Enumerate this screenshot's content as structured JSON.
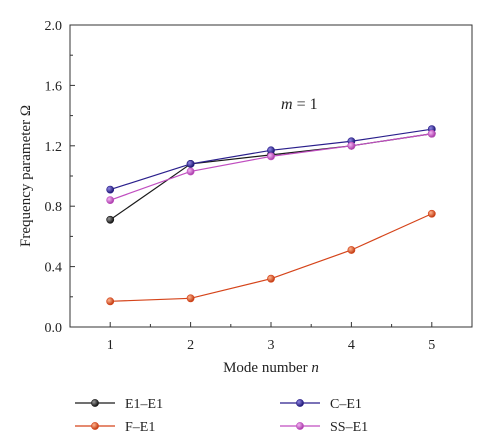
{
  "chart_data": {
    "type": "line",
    "x": [
      1,
      2,
      3,
      4,
      5
    ],
    "xlabel": "Mode number",
    "xlabel_var": "n",
    "ylabel": "Frequency parameter Ω",
    "xlim": [
      0.5,
      5.5
    ],
    "ylim": [
      0.0,
      2.0
    ],
    "xticks": [
      "1",
      "2",
      "3",
      "4",
      "5"
    ],
    "yticks": [
      "0.0",
      "0.4",
      "0.8",
      "1.2",
      "1.6",
      "2.0"
    ],
    "annotation": {
      "var": "m",
      "rest": " = 1"
    },
    "legend_position": "bottom",
    "series": [
      {
        "name": "E1–E1",
        "color": "#1a1a1a",
        "values": [
          0.71,
          1.08,
          1.14,
          1.2,
          1.28
        ]
      },
      {
        "name": "C–E1",
        "color": "#2a1f8c",
        "values": [
          0.91,
          1.08,
          1.17,
          1.23,
          1.31
        ]
      },
      {
        "name": "F–E1",
        "color": "#d5441a",
        "values": [
          0.17,
          0.19,
          0.32,
          0.51,
          0.75
        ]
      },
      {
        "name": "SS–E1",
        "color": "#c04ec0",
        "values": [
          0.84,
          1.03,
          1.13,
          1.2,
          1.28
        ]
      }
    ]
  }
}
